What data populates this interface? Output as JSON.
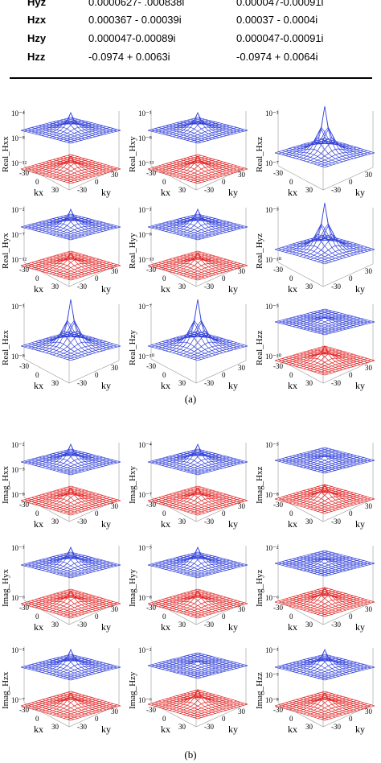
{
  "table": {
    "rows": [
      {
        "label": "Hyz",
        "col1": "0.0000627- .000838i",
        "col2": "0.000047-0.00091i"
      },
      {
        "label": "Hzx",
        "col1": "0.000367 - 0.00039i",
        "col2": "0.00037 - 0.0004i"
      },
      {
        "label": "Hzy",
        "col1": "0.000047-0.00089i",
        "col2": "0.000047-0.00091i"
      },
      {
        "label": "Hzz",
        "col1": "-0.0974 + 0.0063i",
        "col2": "-0.0974 + 0.0064i"
      }
    ]
  },
  "colors": {
    "surface_blue": "#1f2fd6",
    "surface_red": "#e01010",
    "frame": "#9a9a9a"
  },
  "axis_ticks": {
    "kx": [
      "-30",
      "0",
      "30"
    ],
    "ky": [
      "-30",
      "0",
      "30"
    ]
  },
  "axis_names": {
    "x": "kx",
    "y": "ky"
  },
  "figure_a": {
    "caption": "(a)",
    "panels": [
      {
        "zlabel": "Real_Hxx",
        "zticks": [
          "10⁻⁴",
          "10⁻⁸",
          "10⁻¹²"
        ],
        "style": "mixed"
      },
      {
        "zlabel": "Real_Hxy",
        "zticks": [
          "10⁻³",
          "10⁻⁸",
          "10⁻¹³"
        ],
        "style": "mixed"
      },
      {
        "zlabel": "Real_Hxz",
        "zticks": [
          "10⁻³",
          "10⁻⁷"
        ],
        "style": "peak"
      },
      {
        "zlabel": "Real_Hyx",
        "zticks": [
          "10⁻²",
          "10⁻⁷",
          "10⁻¹²"
        ],
        "style": "mixed"
      },
      {
        "zlabel": "Real_Hyy",
        "zticks": [
          "10⁻³",
          "10⁻⁸",
          "10⁻¹³"
        ],
        "style": "mixed"
      },
      {
        "zlabel": "Real_Hyz",
        "zticks": [
          "10⁻⁵",
          "10⁻¹⁰"
        ],
        "style": "peak"
      },
      {
        "zlabel": "Real_Hzx",
        "zticks": [
          "10⁻³",
          "10⁻⁸"
        ],
        "style": "peak"
      },
      {
        "zlabel": "Real_Hzy",
        "zticks": [
          "10⁻⁷",
          "10⁻¹⁰"
        ],
        "style": "peak"
      },
      {
        "zlabel": "Real_Hzz",
        "zticks": [
          "10⁻⁵",
          "10⁻¹⁰"
        ],
        "style": "split"
      }
    ]
  },
  "figure_b": {
    "caption": "(b)",
    "panels": [
      {
        "zlabel": "Imag_Hxx",
        "zticks": [
          "10⁻²",
          "10⁻⁵",
          "10⁻⁸"
        ],
        "style": "mixed"
      },
      {
        "zlabel": "Imag_Hxy",
        "zticks": [
          "10⁻⁴",
          "10⁻⁷"
        ],
        "style": "mixed"
      },
      {
        "zlabel": "Imag_Hxz",
        "zticks": [
          "10⁻⁵",
          "10⁻⁸"
        ],
        "style": "split"
      },
      {
        "zlabel": "Imag_Hyx",
        "zticks": [
          "10⁻³",
          "10⁻⁶"
        ],
        "style": "mixed"
      },
      {
        "zlabel": "Imag_Hyy",
        "zticks": [
          "10⁻⁵",
          "10⁻⁸"
        ],
        "style": "mixed"
      },
      {
        "zlabel": "Imag_Hyz",
        "zticks": [
          "10⁻²",
          "10⁻⁶"
        ],
        "style": "split"
      },
      {
        "zlabel": "Imag_Hzx",
        "zticks": [
          "10⁻³",
          "10⁻⁷"
        ],
        "style": "mixed"
      },
      {
        "zlabel": "Imag_Hzy",
        "zticks": [
          "10⁻²",
          "10⁻⁶"
        ],
        "style": "split"
      },
      {
        "zlabel": "Imag_Hzz",
        "zticks": [
          "10⁻³",
          "10⁻⁵",
          "10⁻⁸"
        ],
        "style": "mixed"
      }
    ]
  }
}
